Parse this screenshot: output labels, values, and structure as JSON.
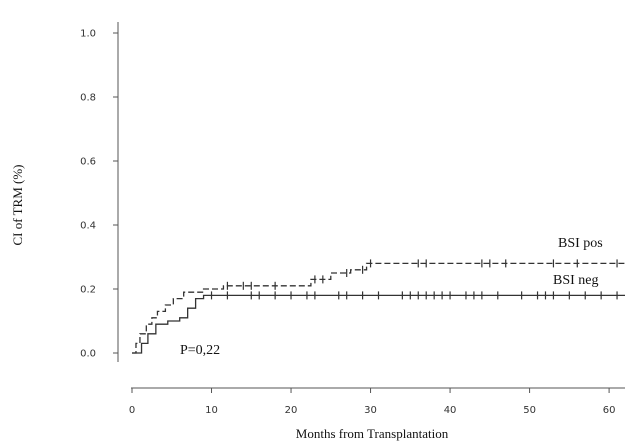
{
  "chart_data": {
    "type": "line",
    "xlabel": "Months from Transplantation",
    "ylabel": "CI of TRM (%)",
    "xlim": [
      0,
      62
    ],
    "ylim": [
      0,
      1.0
    ],
    "x_ticks": [
      0,
      10,
      20,
      30,
      40,
      50,
      60
    ],
    "y_ticks": [
      "0.0",
      "0.2",
      "0.4",
      "0.6",
      "0.8",
      "1.0"
    ],
    "grid": false,
    "series": [
      {
        "name": "BSI pos",
        "line_style": "dashed",
        "color": "#333333",
        "steps": [
          [
            0,
            0.0
          ],
          [
            0.5,
            0.03
          ],
          [
            1,
            0.06
          ],
          [
            1.8,
            0.09
          ],
          [
            2.5,
            0.11
          ],
          [
            3.2,
            0.13
          ],
          [
            4.2,
            0.15
          ],
          [
            5.2,
            0.17
          ],
          [
            6.5,
            0.19
          ],
          [
            9,
            0.2
          ],
          [
            11.5,
            0.21
          ],
          [
            22.5,
            0.23
          ],
          [
            25,
            0.25
          ],
          [
            27.5,
            0.26
          ],
          [
            29.5,
            0.28
          ],
          [
            62,
            0.28
          ]
        ],
        "censored": [
          12,
          14,
          15,
          18,
          23,
          24,
          27,
          29,
          30,
          36,
          37,
          44,
          45,
          47,
          53,
          56,
          61
        ]
      },
      {
        "name": "BSI neg",
        "line_style": "solid",
        "color": "#333333",
        "steps": [
          [
            0,
            0.0
          ],
          [
            1.2,
            0.03
          ],
          [
            2,
            0.06
          ],
          [
            3,
            0.09
          ],
          [
            4.5,
            0.1
          ],
          [
            6,
            0.11
          ],
          [
            7,
            0.14
          ],
          [
            8,
            0.17
          ],
          [
            9,
            0.18
          ],
          [
            62,
            0.18
          ]
        ],
        "censored": [
          10,
          12,
          15,
          16,
          18,
          20,
          22,
          23,
          26,
          27,
          29,
          31,
          34,
          35,
          36,
          37,
          38,
          39,
          40,
          42,
          43,
          44,
          46,
          49,
          51,
          52,
          53,
          55,
          57,
          59,
          61
        ]
      }
    ],
    "annotations": {
      "pvalue": "P=0,22",
      "label_pos": "BSI pos",
      "label_neg": "BSI neg"
    }
  }
}
